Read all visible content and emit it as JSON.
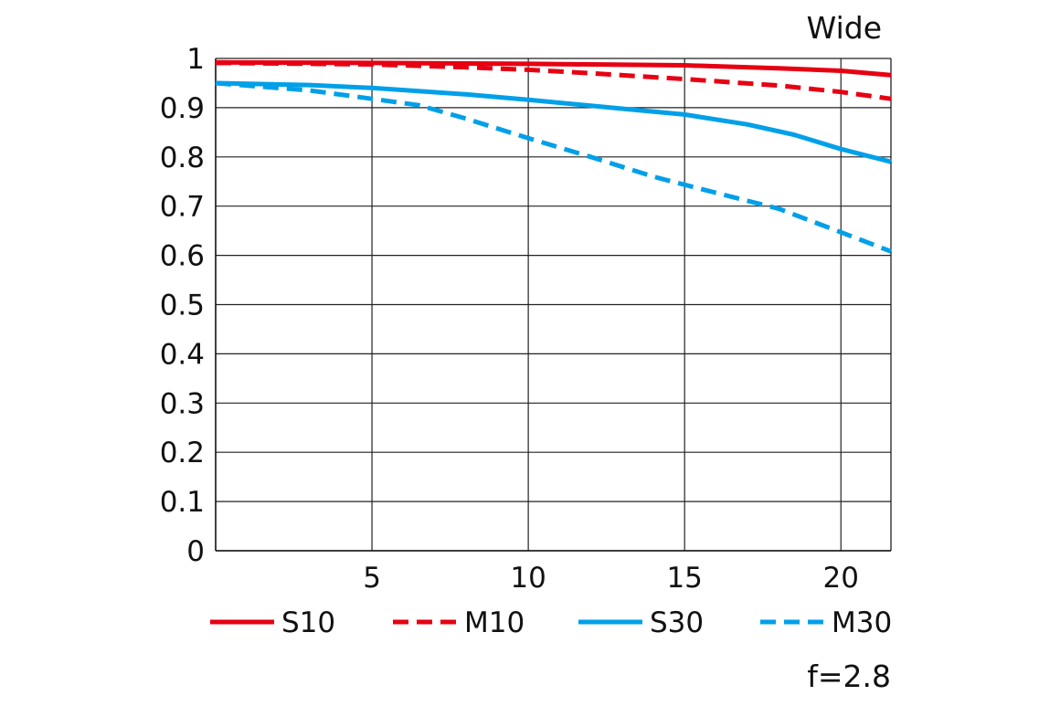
{
  "chart_data": {
    "type": "line",
    "title": "Wide",
    "note": "f=2.8",
    "xlim": [
      0,
      21.6
    ],
    "ylim": [
      0,
      1
    ],
    "x_ticks": [
      5,
      10,
      15,
      20
    ],
    "x_tick_labels": [
      "5",
      "10",
      "15",
      "20"
    ],
    "y_ticks": [
      0,
      0.1,
      0.2,
      0.3,
      0.4,
      0.5,
      0.6,
      0.7,
      0.8,
      0.9,
      1
    ],
    "y_tick_labels": [
      "0",
      "0.1",
      "0.2",
      "0.3",
      "0.4",
      "0.5",
      "0.6",
      "0.7",
      "0.8",
      "0.9",
      "1"
    ],
    "grid": true,
    "legend_position": "bottom",
    "series": [
      {
        "name": "S10",
        "color": "#e60012",
        "dash": false,
        "points": [
          [
            0,
            0.992
          ],
          [
            5,
            0.991
          ],
          [
            10,
            0.989
          ],
          [
            15,
            0.986
          ],
          [
            18,
            0.98
          ],
          [
            20,
            0.975
          ],
          [
            21.6,
            0.966
          ]
        ]
      },
      {
        "name": "M10",
        "color": "#e60012",
        "dash": true,
        "points": [
          [
            0,
            0.991
          ],
          [
            5,
            0.988
          ],
          [
            8,
            0.982
          ],
          [
            10,
            0.977
          ],
          [
            12,
            0.97
          ],
          [
            15,
            0.958
          ],
          [
            18,
            0.945
          ],
          [
            20,
            0.932
          ],
          [
            21.6,
            0.918
          ]
        ]
      },
      {
        "name": "S30",
        "color": "#00a0e9",
        "dash": false,
        "points": [
          [
            0,
            0.95
          ],
          [
            3,
            0.946
          ],
          [
            5,
            0.94
          ],
          [
            8,
            0.927
          ],
          [
            10,
            0.916
          ],
          [
            13,
            0.898
          ],
          [
            15,
            0.886
          ],
          [
            17,
            0.866
          ],
          [
            18.5,
            0.845
          ],
          [
            20,
            0.816
          ],
          [
            21.6,
            0.79
          ]
        ]
      },
      {
        "name": "M30",
        "color": "#00a0e9",
        "dash": true,
        "points": [
          [
            0,
            0.95
          ],
          [
            3,
            0.935
          ],
          [
            5,
            0.918
          ],
          [
            6.5,
            0.905
          ],
          [
            8,
            0.878
          ],
          [
            10,
            0.838
          ],
          [
            12,
            0.8
          ],
          [
            14,
            0.76
          ],
          [
            16,
            0.727
          ],
          [
            18,
            0.695
          ],
          [
            20,
            0.647
          ],
          [
            21.6,
            0.608
          ]
        ]
      }
    ]
  }
}
